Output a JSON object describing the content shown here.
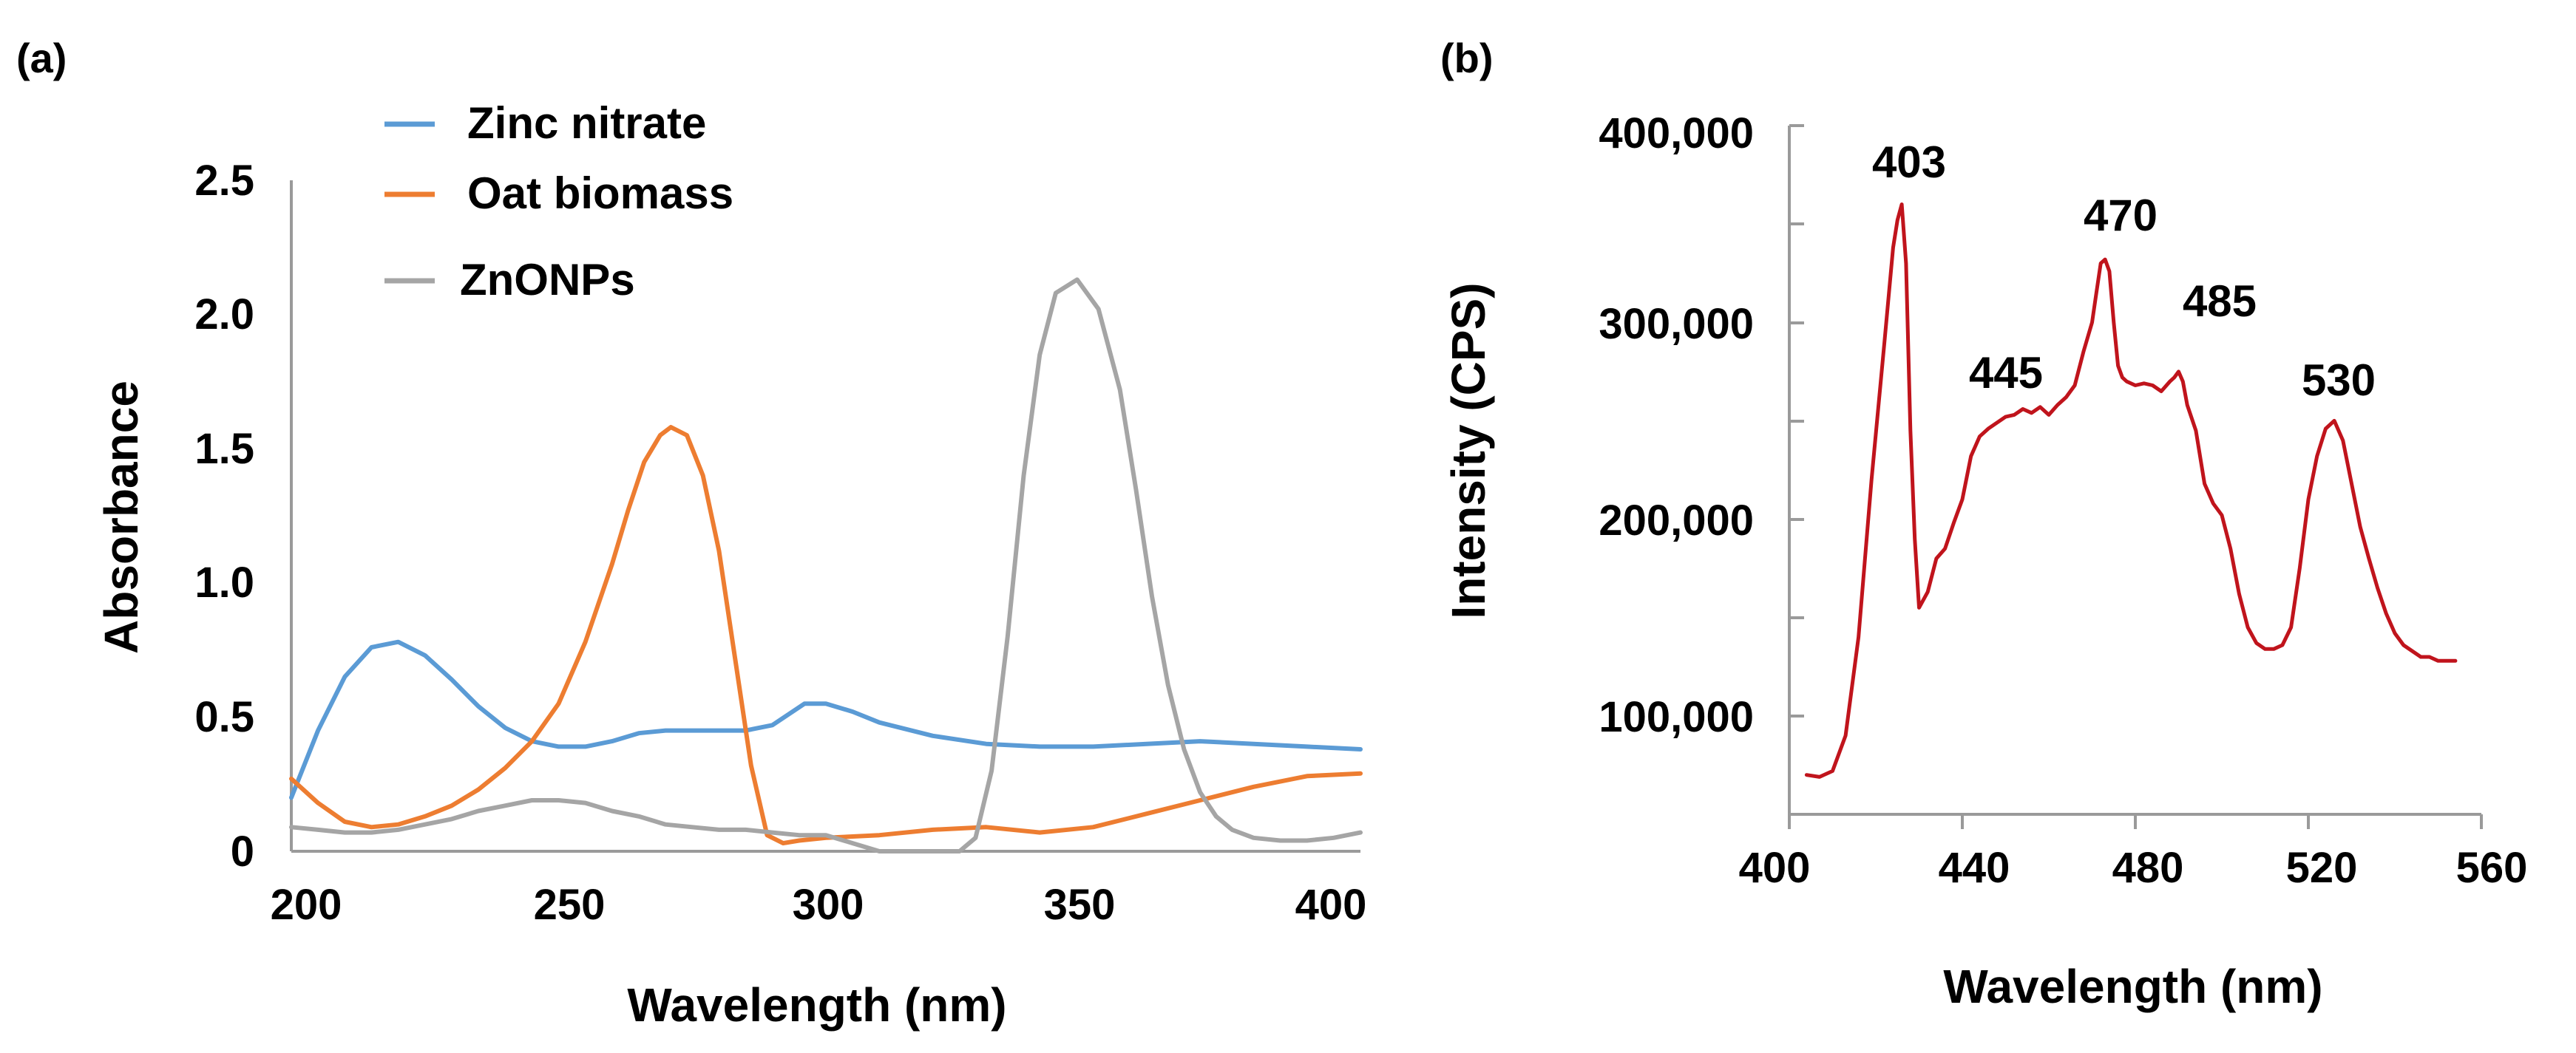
{
  "chart_data": [
    {
      "panel": "(a)",
      "type": "line",
      "xlabel": "Wavelength (nm)",
      "ylabel": "Absorbance",
      "xlim": [
        200,
        400
      ],
      "ylim": [
        0,
        2.5
      ],
      "xticks": [
        "200",
        "250",
        "300",
        "350",
        "400"
      ],
      "yticks": [
        "0",
        "0.5",
        "1.0",
        "1.5",
        "2.0",
        "2.5"
      ],
      "legend_position": "top-left",
      "series": [
        {
          "name": "Zinc nitrate",
          "color": "#5b9bd5",
          "x": [
            200,
            205,
            210,
            215,
            220,
            225,
            230,
            235,
            240,
            245,
            250,
            255,
            260,
            265,
            270,
            275,
            280,
            285,
            290,
            293,
            296,
            300,
            305,
            310,
            320,
            330,
            340,
            350,
            360,
            370,
            380,
            390,
            400
          ],
          "y": [
            0.2,
            0.45,
            0.65,
            0.76,
            0.78,
            0.73,
            0.64,
            0.54,
            0.46,
            0.41,
            0.39,
            0.39,
            0.41,
            0.44,
            0.45,
            0.45,
            0.45,
            0.45,
            0.47,
            0.51,
            0.55,
            0.55,
            0.52,
            0.48,
            0.43,
            0.4,
            0.39,
            0.39,
            0.4,
            0.41,
            0.4,
            0.39,
            0.38
          ]
        },
        {
          "name": "Oat biomass",
          "color": "#ed7d31",
          "x": [
            200,
            205,
            210,
            215,
            220,
            225,
            230,
            235,
            240,
            245,
            250,
            255,
            260,
            263,
            266,
            269,
            271,
            274,
            277,
            280,
            283,
            286,
            289,
            292,
            295,
            300,
            310,
            320,
            330,
            340,
            350,
            360,
            370,
            380,
            390,
            400
          ],
          "y": [
            0.27,
            0.18,
            0.11,
            0.09,
            0.1,
            0.13,
            0.17,
            0.23,
            0.31,
            0.41,
            0.55,
            0.78,
            1.07,
            1.27,
            1.45,
            1.55,
            1.58,
            1.55,
            1.4,
            1.12,
            0.72,
            0.32,
            0.06,
            0.03,
            0.04,
            0.05,
            0.06,
            0.08,
            0.09,
            0.07,
            0.09,
            0.14,
            0.19,
            0.24,
            0.28,
            0.29
          ]
        },
        {
          "name": "ZnONPs",
          "color": "#a5a5a5",
          "x": [
            200,
            205,
            210,
            215,
            220,
            225,
            230,
            235,
            240,
            245,
            250,
            255,
            260,
            265,
            270,
            275,
            280,
            285,
            290,
            295,
            300,
            305,
            310,
            315,
            320,
            325,
            328,
            331,
            334,
            337,
            340,
            343,
            347,
            351,
            355,
            358,
            361,
            364,
            367,
            370,
            373,
            376,
            380,
            385,
            390,
            395,
            400
          ],
          "y": [
            0.09,
            0.08,
            0.07,
            0.07,
            0.08,
            0.1,
            0.12,
            0.15,
            0.17,
            0.19,
            0.19,
            0.18,
            0.15,
            0.13,
            0.1,
            0.09,
            0.08,
            0.08,
            0.07,
            0.06,
            0.06,
            0.03,
            0.0,
            0.0,
            0.0,
            0.0,
            0.05,
            0.3,
            0.8,
            1.4,
            1.85,
            2.08,
            2.13,
            2.02,
            1.72,
            1.35,
            0.95,
            0.62,
            0.38,
            0.22,
            0.13,
            0.08,
            0.05,
            0.04,
            0.04,
            0.05,
            0.07
          ]
        }
      ]
    },
    {
      "panel": "(b)",
      "type": "line",
      "xlabel": "Wavelength (nm)",
      "ylabel": "Intensity (CPS)",
      "xlim": [
        400,
        560
      ],
      "ylim": [
        50000,
        400000
      ],
      "xticks": [
        "400",
        "440",
        "480",
        "520",
        "560"
      ],
      "yticks": [
        "100,000",
        "200,000",
        "300,000",
        "400,000"
      ],
      "ytick_values": [
        100000,
        200000,
        300000,
        400000
      ],
      "peak_labels": [
        "403",
        "445",
        "470",
        "485",
        "530"
      ],
      "series": [
        {
          "name": "Intensity",
          "color": "#c0141c",
          "x": [
            404,
            407,
            410,
            413,
            416,
            419,
            422,
            424,
            425,
            426,
            427,
            428,
            429,
            430,
            432,
            434,
            436,
            438,
            440,
            442,
            444,
            446,
            448,
            450,
            452,
            454,
            456,
            458,
            460,
            462,
            464,
            466,
            468,
            470,
            471,
            472,
            473,
            474,
            475,
            476,
            477,
            478,
            480,
            482,
            484,
            486,
            488,
            489,
            490,
            491,
            492,
            494,
            496,
            498,
            500,
            502,
            504,
            506,
            508,
            510,
            512,
            514,
            516,
            518,
            520,
            522,
            524,
            526,
            528,
            530,
            532,
            534,
            536,
            538,
            540,
            542,
            544,
            546,
            548,
            550,
            552,
            554
          ],
          "y": [
            70000,
            69000,
            72000,
            90000,
            140000,
            220000,
            290000,
            338000,
            352000,
            360000,
            330000,
            245000,
            190000,
            155000,
            163000,
            180000,
            185000,
            198000,
            210000,
            232000,
            242000,
            246000,
            249000,
            252000,
            253000,
            256000,
            254000,
            257000,
            253000,
            258000,
            262000,
            268000,
            285000,
            300000,
            315000,
            330000,
            332000,
            326000,
            300000,
            278000,
            272000,
            270000,
            268000,
            269000,
            268000,
            265000,
            270000,
            272000,
            275000,
            270000,
            258000,
            245000,
            218000,
            208000,
            202000,
            185000,
            162000,
            145000,
            137000,
            134000,
            134000,
            136000,
            145000,
            175000,
            210000,
            232000,
            246000,
            250000,
            240000,
            218000,
            196000,
            180000,
            165000,
            152000,
            142000,
            136000,
            133000,
            130000,
            130000,
            128000,
            128000,
            128000
          ]
        }
      ]
    }
  ]
}
